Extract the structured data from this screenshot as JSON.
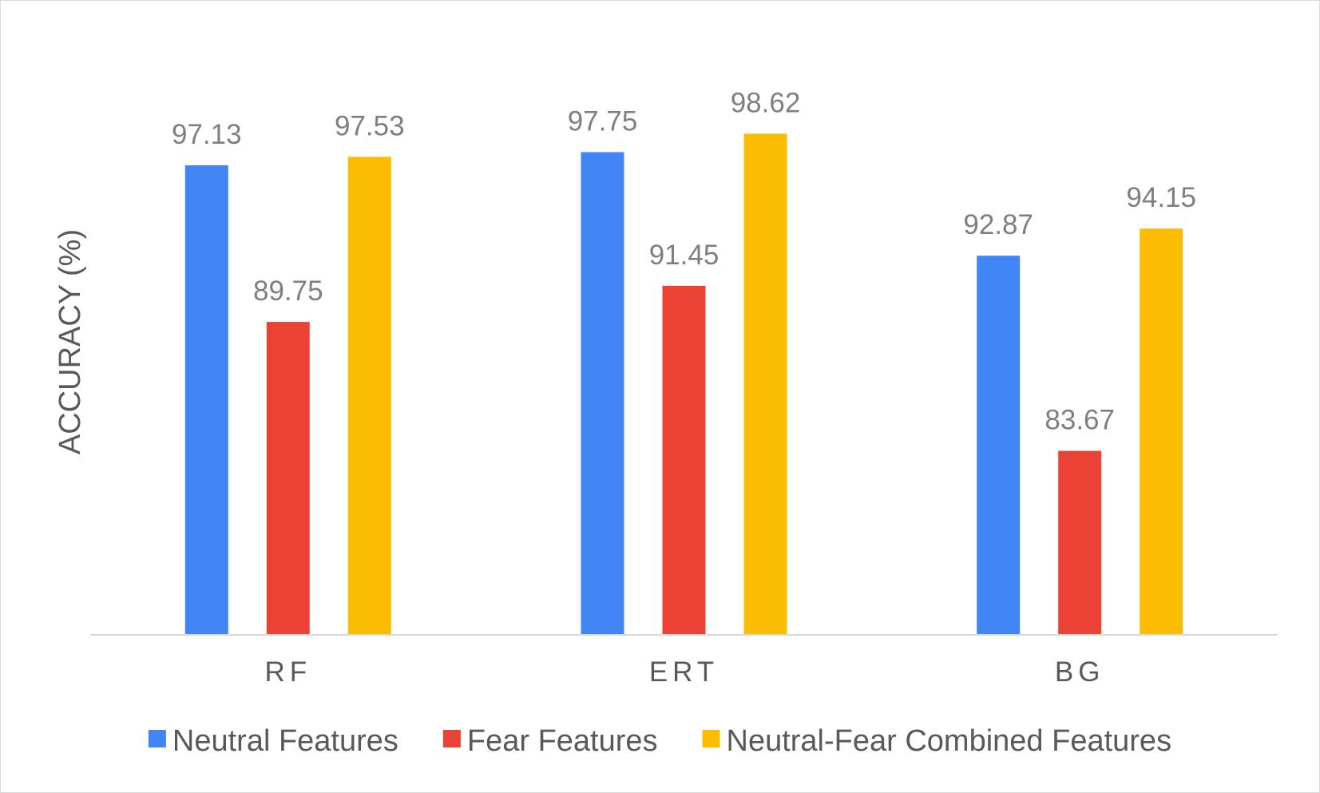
{
  "chart_data": {
    "type": "bar",
    "categories": [
      "RF",
      "ERT",
      "BG"
    ],
    "series": [
      {
        "name": "Neutral Features",
        "color": "#4285F4",
        "values": [
          97.13,
          97.75,
          92.87
        ]
      },
      {
        "name": "Fear Features",
        "color": "#EA4335",
        "values": [
          89.75,
          91.45,
          83.67
        ]
      },
      {
        "name": "Neutral-Fear Combined Features",
        "color": "#FBBC04",
        "values": [
          97.53,
          98.62,
          94.15
        ]
      }
    ],
    "xlabel": "",
    "ylabel": "ACCURACY (%)",
    "ylim": [
      75,
      100
    ],
    "grid": false,
    "legend": "bottom",
    "data_labels": true
  }
}
